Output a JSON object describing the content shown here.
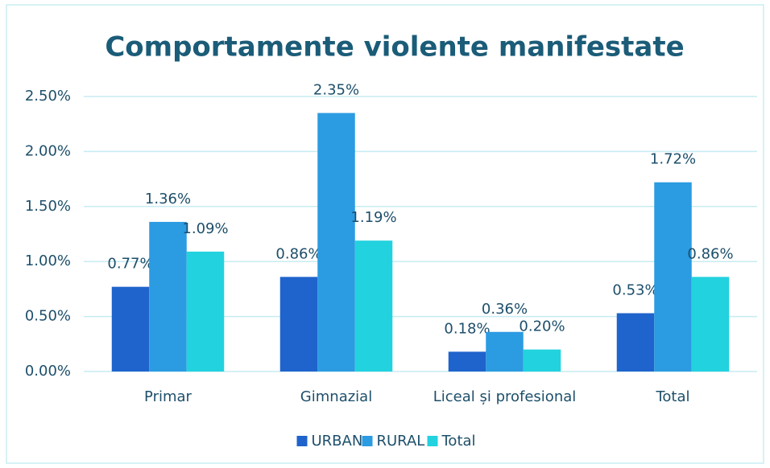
{
  "chart_data": {
    "type": "bar",
    "title": "Comportamente violente manifestate",
    "categories": [
      "Primar",
      "Gimnazial",
      "Liceal și profesional",
      "Total"
    ],
    "series": [
      {
        "name": "URBAN",
        "color": "#1f63cc",
        "values": [
          0.77,
          0.86,
          0.18,
          0.53
        ],
        "value_labels": [
          "0.77%",
          "0.86%",
          "0.18%",
          "0.53%"
        ]
      },
      {
        "name": "RURAL",
        "color": "#2b9be2",
        "values": [
          1.36,
          2.35,
          0.36,
          1.72
        ],
        "value_labels": [
          "1.36%",
          "2.35%",
          "0.36%",
          "1.72%"
        ]
      },
      {
        "name": "Total",
        "color": "#22d2de",
        "values": [
          1.09,
          1.19,
          0.2,
          0.86
        ],
        "value_labels": [
          "1.09%",
          "1.19%",
          "0.20%",
          "0.86%"
        ]
      }
    ],
    "ylim": [
      0,
      2.5
    ],
    "yticks": [
      {
        "value": 0,
        "label": "0.00%"
      },
      {
        "value": 0.5,
        "label": "0.50%"
      },
      {
        "value": 1,
        "label": "1.00%"
      },
      {
        "value": 1.5,
        "label": "1.50%"
      },
      {
        "value": 2,
        "label": "2.00%"
      },
      {
        "value": 2.5,
        "label": "2.50%"
      }
    ],
    "grid": true,
    "legend": "bottom"
  }
}
